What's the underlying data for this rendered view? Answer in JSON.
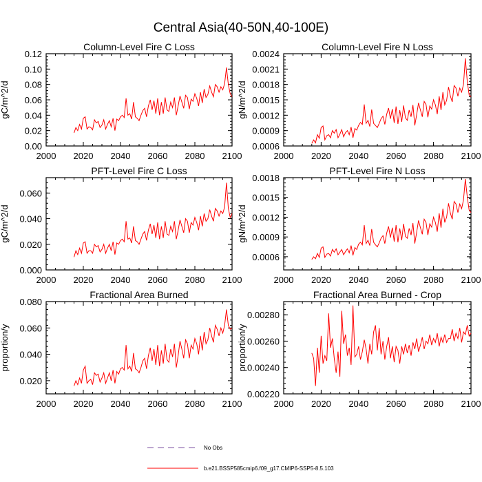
{
  "figure_title": "Central Asia(40-50N,40-100E)",
  "colors": {
    "series": "#ff0000",
    "no_obs": "#7b4fa0",
    "axis": "#000000"
  },
  "legend": {
    "items": [
      {
        "label": "No Obs",
        "style": "dashed",
        "color": "#7b4fa0"
      },
      {
        "label": "b.e21.BSSP585cmip6.f09_g17.CMIP6-SSP5-8.5.103",
        "style": "solid",
        "color": "#ff0000"
      }
    ]
  },
  "chart_data": [
    {
      "type": "line",
      "title": "Column-Level Fire C Loss",
      "ylabel": "gC/m^2/d",
      "xlabel": "",
      "xlim": [
        2000,
        2100
      ],
      "ylim": [
        0.0,
        0.12
      ],
      "xticks": [
        2000,
        2020,
        2040,
        2060,
        2080,
        2100
      ],
      "yticks": [
        0.0,
        0.02,
        0.04,
        0.06,
        0.08,
        0.1,
        0.12
      ],
      "ytick_labels": [
        "0.00",
        "0.02",
        "0.04",
        "0.06",
        "0.08",
        "0.10",
        "0.12"
      ],
      "xtick_labels": [
        "2000",
        "2020",
        "2040",
        "2060",
        "2080",
        "2100"
      ],
      "series": [
        {
          "name": "b.e21.BSSP585cmip6.f09_g17.CMIP6-SSP5-8.5.103",
          "x_start": 2015,
          "values": [
            0.017,
            0.024,
            0.02,
            0.028,
            0.022,
            0.036,
            0.038,
            0.022,
            0.025,
            0.024,
            0.021,
            0.034,
            0.03,
            0.032,
            0.024,
            0.027,
            0.034,
            0.022,
            0.028,
            0.033,
            0.025,
            0.036,
            0.02,
            0.035,
            0.033,
            0.038,
            0.04,
            0.037,
            0.062,
            0.04,
            0.042,
            0.035,
            0.057,
            0.038,
            0.036,
            0.033,
            0.04,
            0.046,
            0.049,
            0.038,
            0.052,
            0.06,
            0.047,
            0.059,
            0.042,
            0.062,
            0.04,
            0.057,
            0.042,
            0.063,
            0.047,
            0.045,
            0.057,
            0.05,
            0.063,
            0.04,
            0.052,
            0.065,
            0.057,
            0.049,
            0.066,
            0.063,
            0.048,
            0.061,
            0.058,
            0.068,
            0.062,
            0.052,
            0.07,
            0.056,
            0.074,
            0.063,
            0.067,
            0.078,
            0.07,
            0.064,
            0.08,
            0.077,
            0.07,
            0.077,
            0.073,
            0.081,
            0.102,
            0.08,
            0.068,
            0.064
          ]
        }
      ]
    },
    {
      "type": "line",
      "title": "Column-Level Fire N Loss",
      "ylabel": "gN/m^2/d",
      "xlabel": "",
      "xlim": [
        2000,
        2100
      ],
      "ylim": [
        0.0006,
        0.0024
      ],
      "xticks": [
        2000,
        2020,
        2040,
        2060,
        2080,
        2100
      ],
      "yticks": [
        0.0006,
        0.0009,
        0.0012,
        0.0015,
        0.0018,
        0.0021,
        0.0024
      ],
      "ytick_labels": [
        "0.0006",
        "0.0009",
        "0.0012",
        "0.0015",
        "0.0018",
        "0.0021",
        "0.0024"
      ],
      "xtick_labels": [
        "2000",
        "2020",
        "2040",
        "2060",
        "2080",
        "2100"
      ],
      "series": [
        {
          "name": "b.e21.BSSP585cmip6.f09_g17.CMIP6-SSP5-8.5.103",
          "x_start": 2015,
          "values": [
            0.00065,
            0.00072,
            0.00066,
            0.00082,
            0.00075,
            0.00096,
            0.00099,
            0.00072,
            0.0008,
            0.00082,
            0.00076,
            0.0009,
            0.00085,
            0.00092,
            0.00076,
            0.00083,
            0.00092,
            0.00078,
            0.00086,
            0.0009,
            0.00082,
            0.00097,
            0.00076,
            0.00094,
            0.00091,
            0.001,
            0.00106,
            0.00102,
            0.00141,
            0.00104,
            0.0011,
            0.00098,
            0.00131,
            0.00104,
            0.001,
            0.00096,
            0.00104,
            0.00113,
            0.00118,
            0.00102,
            0.00122,
            0.00134,
            0.00113,
            0.00132,
            0.00105,
            0.00137,
            0.00103,
            0.0013,
            0.00107,
            0.00139,
            0.00115,
            0.0011,
            0.0013,
            0.00117,
            0.0014,
            0.001,
            0.00121,
            0.00144,
            0.0013,
            0.00117,
            0.00147,
            0.00141,
            0.00116,
            0.00138,
            0.00132,
            0.0015,
            0.0014,
            0.00122,
            0.00157,
            0.0013,
            0.00165,
            0.0014,
            0.00149,
            0.00175,
            0.00157,
            0.00146,
            0.00178,
            0.00173,
            0.00157,
            0.00173,
            0.00165,
            0.0018,
            0.00231,
            0.00186,
            0.0016,
            0.00156
          ]
        }
      ]
    },
    {
      "type": "line",
      "title": "PFT-Level Fire C Loss",
      "ylabel": "gC/m^2/d",
      "xlabel": "",
      "xlim": [
        2000,
        2100
      ],
      "ylim": [
        0.0,
        0.072
      ],
      "xticks": [
        2000,
        2020,
        2040,
        2060,
        2080,
        2100
      ],
      "yticks": [
        0.0,
        0.02,
        0.04,
        0.06
      ],
      "ytick_labels": [
        "0.000",
        "0.020",
        "0.040",
        "0.060"
      ],
      "xtick_labels": [
        "2000",
        "2020",
        "2040",
        "2060",
        "2080",
        "2100"
      ],
      "series": [
        {
          "name": "b.e21.BSSP585cmip6.f09_g17.CMIP6-SSP5-8.5.103",
          "x_start": 2015,
          "values": [
            0.01,
            0.015,
            0.012,
            0.017,
            0.013,
            0.021,
            0.022,
            0.013,
            0.015,
            0.015,
            0.013,
            0.02,
            0.018,
            0.019,
            0.014,
            0.016,
            0.02,
            0.013,
            0.017,
            0.02,
            0.015,
            0.022,
            0.012,
            0.021,
            0.02,
            0.023,
            0.024,
            0.022,
            0.038,
            0.024,
            0.025,
            0.021,
            0.034,
            0.023,
            0.022,
            0.02,
            0.024,
            0.028,
            0.03,
            0.023,
            0.031,
            0.036,
            0.028,
            0.035,
            0.025,
            0.037,
            0.024,
            0.034,
            0.025,
            0.038,
            0.028,
            0.027,
            0.034,
            0.03,
            0.038,
            0.024,
            0.031,
            0.039,
            0.034,
            0.029,
            0.04,
            0.038,
            0.029,
            0.037,
            0.035,
            0.041,
            0.037,
            0.031,
            0.042,
            0.034,
            0.044,
            0.038,
            0.04,
            0.047,
            0.042,
            0.038,
            0.048,
            0.046,
            0.042,
            0.046,
            0.044,
            0.049,
            0.068,
            0.048,
            0.041,
            0.044
          ]
        }
      ]
    },
    {
      "type": "line",
      "title": "PFT-Level Fire N Loss",
      "ylabel": "gN/m^2/d",
      "xlabel": "",
      "xlim": [
        2000,
        2100
      ],
      "ylim": [
        0.0004,
        0.0018
      ],
      "xticks": [
        2000,
        2020,
        2040,
        2060,
        2080,
        2100
      ],
      "yticks": [
        0.0006,
        0.0009,
        0.0012,
        0.0015,
        0.0018
      ],
      "ytick_labels": [
        "0.0006",
        "0.0009",
        "0.0012",
        "0.0015",
        "0.0018"
      ],
      "xtick_labels": [
        "2000",
        "2020",
        "2040",
        "2060",
        "2080",
        "2100"
      ],
      "series": [
        {
          "name": "b.e21.BSSP585cmip6.f09_g17.CMIP6-SSP5-8.5.103",
          "x_start": 2015,
          "values": [
            0.00056,
            0.0006,
            0.00057,
            0.00065,
            0.00059,
            0.00073,
            0.00075,
            0.00059,
            0.00064,
            0.00065,
            0.00061,
            0.00071,
            0.00067,
            0.00072,
            0.00063,
            0.00067,
            0.00071,
            0.00063,
            0.00068,
            0.00072,
            0.00066,
            0.00077,
            0.00062,
            0.00074,
            0.00071,
            0.00079,
            0.00082,
            0.00078,
            0.00108,
            0.0008,
            0.00085,
            0.00077,
            0.00102,
            0.00082,
            0.00078,
            0.00075,
            0.00081,
            0.00088,
            0.00092,
            0.0008,
            0.00096,
            0.00106,
            0.00089,
            0.00104,
            0.00083,
            0.00108,
            0.00082,
            0.00103,
            0.00085,
            0.0011,
            0.00091,
            0.00088,
            0.00103,
            0.00093,
            0.00111,
            0.0008,
            0.00097,
            0.00115,
            0.00104,
            0.00094,
            0.00117,
            0.00112,
            0.00093,
            0.0011,
            0.00105,
            0.0012,
            0.00112,
            0.00098,
            0.00126,
            0.00104,
            0.00133,
            0.00112,
            0.0012,
            0.00141,
            0.00126,
            0.00117,
            0.00144,
            0.0014,
            0.00127,
            0.0014,
            0.00133,
            0.00146,
            0.00178,
            0.00151,
            0.00131,
            0.00127
          ]
        }
      ]
    },
    {
      "type": "line",
      "title": "Fractional Area Burned",
      "ylabel": "proportion/y",
      "xlabel": "",
      "xlim": [
        2000,
        2100
      ],
      "ylim": [
        0.01,
        0.08
      ],
      "xticks": [
        2000,
        2020,
        2040,
        2060,
        2080,
        2100
      ],
      "yticks": [
        0.02,
        0.04,
        0.06,
        0.08
      ],
      "ytick_labels": [
        "0.020",
        "0.040",
        "0.060",
        "0.080"
      ],
      "xtick_labels": [
        "2000",
        "2020",
        "2040",
        "2060",
        "2080",
        "2100"
      ],
      "series": [
        {
          "name": "b.e21.BSSP585cmip6.f09_g17.CMIP6-SSP5-8.5.103",
          "x_start": 2015,
          "values": [
            0.016,
            0.02,
            0.017,
            0.022,
            0.018,
            0.028,
            0.031,
            0.018,
            0.02,
            0.021,
            0.017,
            0.026,
            0.024,
            0.025,
            0.019,
            0.022,
            0.026,
            0.018,
            0.022,
            0.026,
            0.02,
            0.028,
            0.018,
            0.027,
            0.025,
            0.029,
            0.03,
            0.028,
            0.047,
            0.029,
            0.031,
            0.027,
            0.041,
            0.029,
            0.028,
            0.026,
            0.03,
            0.035,
            0.037,
            0.029,
            0.039,
            0.045,
            0.035,
            0.044,
            0.032,
            0.047,
            0.031,
            0.043,
            0.033,
            0.048,
            0.036,
            0.034,
            0.044,
            0.038,
            0.048,
            0.03,
            0.039,
            0.05,
            0.044,
            0.037,
            0.051,
            0.048,
            0.037,
            0.047,
            0.044,
            0.052,
            0.048,
            0.04,
            0.054,
            0.043,
            0.057,
            0.048,
            0.051,
            0.06,
            0.054,
            0.049,
            0.062,
            0.059,
            0.054,
            0.06,
            0.056,
            0.062,
            0.074,
            0.062,
            0.059,
            0.06
          ]
        }
      ]
    },
    {
      "type": "line",
      "title": "Fractional Area Burned - Crop",
      "ylabel": "proportion/y",
      "xlabel": "",
      "xlim": [
        2000,
        2100
      ],
      "ylim": [
        0.0022,
        0.0029
      ],
      "xticks": [
        2000,
        2020,
        2040,
        2060,
        2080,
        2100
      ],
      "yticks": [
        0.0022,
        0.0024,
        0.0026,
        0.0028
      ],
      "ytick_labels": [
        "0.00220",
        "0.00240",
        "0.00260",
        "0.00280"
      ],
      "xtick_labels": [
        "2000",
        "2020",
        "2040",
        "2060",
        "2080",
        "2100"
      ],
      "series": [
        {
          "name": "b.e21.BSSP585cmip6.f09_g17.CMIP6-SSP5-8.5.103",
          "x_start": 2015,
          "values": [
            0.00251,
            0.00247,
            0.00226,
            0.00255,
            0.00236,
            0.00264,
            0.00243,
            0.00249,
            0.00245,
            0.00281,
            0.00255,
            0.00262,
            0.00247,
            0.00236,
            0.00252,
            0.00233,
            0.00283,
            0.00258,
            0.00265,
            0.00249,
            0.00255,
            0.00242,
            0.00287,
            0.00248,
            0.0025,
            0.00256,
            0.00246,
            0.00252,
            0.00261,
            0.00254,
            0.00243,
            0.00258,
            0.0025,
            0.00267,
            0.00272,
            0.00253,
            0.0027,
            0.0025,
            0.0026,
            0.00246,
            0.00256,
            0.00263,
            0.00247,
            0.00256,
            0.00244,
            0.00256,
            0.00253,
            0.00243,
            0.00256,
            0.0025,
            0.00258,
            0.00251,
            0.00257,
            0.00249,
            0.00259,
            0.00254,
            0.00262,
            0.00252,
            0.00257,
            0.00263,
            0.00254,
            0.0026,
            0.00258,
            0.00265,
            0.00257,
            0.00262,
            0.00259,
            0.00266,
            0.00256,
            0.00263,
            0.00259,
            0.00265,
            0.00259,
            0.00262,
            0.00262,
            0.00269,
            0.0026,
            0.00266,
            0.00262,
            0.0027,
            0.00259,
            0.00267,
            0.00265,
            0.00272,
            0.00264,
            0.00266
          ]
        }
      ]
    }
  ]
}
